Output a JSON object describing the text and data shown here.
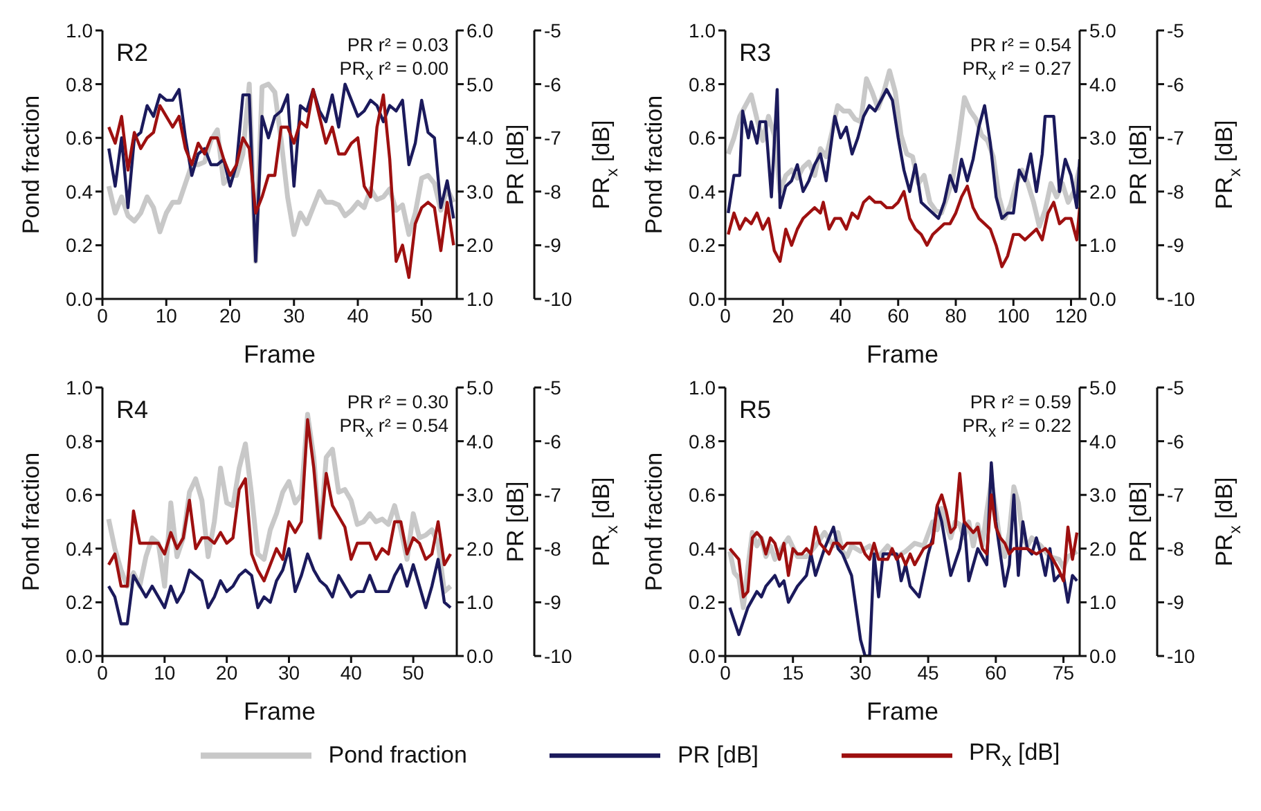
{
  "chart_data": [
    {
      "type": "line",
      "title": "R2",
      "xlabel": "Frame",
      "ylabel": "Pond fraction",
      "y2label": "PR [dB]",
      "y3label": "PR$_{x}$ [dB]",
      "annotations": [
        "PR r² = 0.03",
        "PR$_{x}$ r² = 0.00"
      ],
      "x": [
        1,
        2,
        3,
        4,
        5,
        6,
        7,
        8,
        9,
        10,
        11,
        12,
        13,
        14,
        15,
        16,
        17,
        18,
        19,
        20,
        21,
        22,
        23,
        24,
        25,
        26,
        27,
        28,
        29,
        30,
        31,
        32,
        33,
        34,
        35,
        36,
        37,
        38,
        39,
        40,
        41,
        42,
        43,
        44,
        45,
        46,
        47,
        48,
        49,
        50,
        51,
        52,
        53,
        54,
        55
      ],
      "xlim": [
        0,
        55.5
      ],
      "xticks": [
        0,
        10,
        20,
        30,
        40,
        50
      ],
      "ylim": [
        0,
        1
      ],
      "yticks": [
        {
          "value": 0,
          "label": "0.0"
        },
        {
          "value": 0.2,
          "label": "0.2"
        },
        {
          "value": 0.4,
          "label": "0.4"
        },
        {
          "value": 0.6,
          "label": "0.6"
        },
        {
          "value": 0.8,
          "label": "0.8"
        },
        {
          "value": 1,
          "label": "1.0"
        }
      ],
      "y2lim": [
        1,
        6
      ],
      "y2ticks": [
        {
          "value": 1,
          "label": "1.0"
        },
        {
          "value": 2,
          "label": "2.0"
        },
        {
          "value": 3,
          "label": "3.0"
        },
        {
          "value": 4,
          "label": "4.0"
        },
        {
          "value": 5,
          "label": "5.0"
        },
        {
          "value": 6,
          "label": "6.0"
        }
      ],
      "y3lim": [
        -10,
        -5
      ],
      "y3ticks": [
        -10,
        -9,
        -8,
        -7,
        -6,
        -5
      ],
      "series": [
        {
          "color": "#c8c8c8",
          "values": [
            0.42,
            0.32,
            0.38,
            0.31,
            0.29,
            0.32,
            0.38,
            0.34,
            0.25,
            0.32,
            0.36,
            0.36,
            0.43,
            0.5,
            0.5,
            0.51,
            0.59,
            0.63,
            0.43,
            0.46,
            0.46,
            0.54,
            0.8,
            0.14,
            0.79,
            0.8,
            0.77,
            0.59,
            0.38,
            0.24,
            0.32,
            0.28,
            0.34,
            0.4,
            0.36,
            0.36,
            0.35,
            0.31,
            0.33,
            0.36,
            0.34,
            0.41,
            0.37,
            0.38,
            0.41,
            0.33,
            0.35,
            0.24,
            0.32,
            0.45,
            0.46,
            0.43,
            0.33,
            0.41,
            0.36
          ]
        },
        {
          "color": "#1b1a5c",
          "axis": "y2",
          "values": [
            3.8,
            3.1,
            4.0,
            2.7,
            4.0,
            4.1,
            4.6,
            4.4,
            4.8,
            4.7,
            4.7,
            4.9,
            4.0,
            3.3,
            3.7,
            3.8,
            3.5,
            3.5,
            3.6,
            3.1,
            3.5,
            4.8,
            4.8,
            1.7,
            4.4,
            4.0,
            4.4,
            4.5,
            4.8,
            3.1,
            4.6,
            4.5,
            4.9,
            4.5,
            4.3,
            4.8,
            4.2,
            5.0,
            4.7,
            4.4,
            4.5,
            4.7,
            4.6,
            4.3,
            4.6,
            4.5,
            4.7,
            3.5,
            3.9,
            4.7,
            4.1,
            4.0,
            2.7,
            3.2,
            2.5
          ]
        },
        {
          "color": "#9e1010",
          "axis": "y3",
          "values": [
            -6.8,
            -7.1,
            -6.6,
            -7.6,
            -6.9,
            -7.2,
            -7.0,
            -6.9,
            -6.4,
            -6.6,
            -6.8,
            -6.6,
            -7.2,
            -7.5,
            -7.1,
            -7.3,
            -7.0,
            -7.0,
            -7.4,
            -7.7,
            -7.5,
            -7.0,
            -7.2,
            -8.4,
            -8.1,
            -7.7,
            -7.7,
            -6.8,
            -6.8,
            -7.1,
            -6.7,
            -6.8,
            -6.1,
            -6.6,
            -7.1,
            -6.8,
            -7.3,
            -7.3,
            -7.1,
            -7.0,
            -7.9,
            -8.1,
            -6.8,
            -6.2,
            -7.4,
            -9.3,
            -9.0,
            -9.6,
            -8.6,
            -8.3,
            -8.2,
            -8.3,
            -9.1,
            -8.2,
            -9.0
          ]
        }
      ]
    },
    {
      "type": "line",
      "title": "R3",
      "xlabel": "Frame",
      "ylabel": "Pond fraction",
      "y2label": "PR [dB]",
      "y3label": "PR$_{x}$ [dB]",
      "annotations": [
        "PR r² = 0.54",
        "PR$_{x}$ r² = 0.27"
      ],
      "xlim": [
        0,
        123
      ],
      "xticks": [
        0,
        20,
        40,
        60,
        80,
        100,
        120
      ],
      "ylim": [
        0,
        1
      ],
      "yticks": [
        {
          "value": 0,
          "label": "0.0"
        },
        {
          "value": 0.2,
          "label": "0.2"
        },
        {
          "value": 0.4,
          "label": "0.4"
        },
        {
          "value": 0.6,
          "label": "0.6"
        },
        {
          "value": 0.8,
          "label": "0.8"
        },
        {
          "value": 1,
          "label": "1.0"
        }
      ],
      "y2lim": [
        0,
        5
      ],
      "y2ticks": [
        {
          "value": 0,
          "label": "0.0"
        },
        {
          "value": 1,
          "label": "1.0"
        },
        {
          "value": 2,
          "label": "2.0"
        },
        {
          "value": 3,
          "label": "3.0"
        },
        {
          "value": 4,
          "label": "4.0"
        },
        {
          "value": 5,
          "label": "5.0"
        }
      ],
      "y3lim": [
        -10,
        -5
      ],
      "y3ticks": [
        -10,
        -9,
        -8,
        -7,
        -6,
        -5
      ],
      "series": [
        {
          "color": "#c8c8c8",
          "x": [
            1,
            3,
            5,
            7,
            9,
            11,
            13,
            15,
            17,
            19,
            21,
            23,
            25,
            27,
            29,
            31,
            33,
            35,
            37,
            39,
            41,
            43,
            45,
            47,
            49,
            51,
            53,
            55,
            57,
            59,
            61,
            63,
            65,
            67,
            69,
            71,
            73,
            75,
            77,
            79,
            81,
            83,
            85,
            87,
            89,
            91,
            93,
            95,
            97,
            99,
            101,
            103,
            105,
            107,
            109,
            111,
            113,
            115,
            117,
            119,
            121,
            123
          ],
          "values": [
            0.54,
            0.6,
            0.68,
            0.72,
            0.76,
            0.67,
            0.59,
            0.68,
            0.61,
            0.4,
            0.46,
            0.48,
            0.45,
            0.49,
            0.51,
            0.46,
            0.56,
            0.53,
            0.62,
            0.72,
            0.7,
            0.7,
            0.67,
            0.66,
            0.82,
            0.77,
            0.71,
            0.77,
            0.85,
            0.77,
            0.61,
            0.54,
            0.53,
            0.43,
            0.46,
            0.36,
            0.33,
            0.32,
            0.38,
            0.45,
            0.59,
            0.75,
            0.7,
            0.67,
            0.61,
            0.59,
            0.53,
            0.38,
            0.3,
            0.35,
            0.43,
            0.48,
            0.43,
            0.36,
            0.27,
            0.33,
            0.43,
            0.38,
            0.43,
            0.36,
            0.4,
            0.49
          ]
        },
        {
          "color": "#1b1a5c",
          "axis": "y2",
          "x": [
            1,
            3,
            5,
            6,
            8,
            9,
            11,
            12,
            14,
            16,
            18,
            19,
            21,
            23,
            25,
            27,
            29,
            31,
            33,
            35,
            37,
            38,
            40,
            42,
            44,
            46,
            48,
            50,
            52,
            54,
            56,
            58,
            60,
            62,
            64,
            66,
            68,
            70,
            72,
            74,
            76,
            78,
            80,
            82,
            84,
            86,
            88,
            90,
            92,
            94,
            96,
            98,
            100,
            102,
            104,
            106,
            108,
            110,
            111,
            114,
            116,
            118,
            120,
            122,
            123
          ],
          "values": [
            1.6,
            2.3,
            2.3,
            3.5,
            3.0,
            3.3,
            2.9,
            3.3,
            3.3,
            1.9,
            3.9,
            1.7,
            2.1,
            2.2,
            2.5,
            2.0,
            2.2,
            2.5,
            2.7,
            2.2,
            3.0,
            3.4,
            3.0,
            3.2,
            2.7,
            3.0,
            3.4,
            3.6,
            3.5,
            3.7,
            3.9,
            3.7,
            3.0,
            2.4,
            2.0,
            2.5,
            1.8,
            1.7,
            1.6,
            1.5,
            1.8,
            2.3,
            2.0,
            2.6,
            2.2,
            2.6,
            3.2,
            3.6,
            2.9,
            1.9,
            1.5,
            1.6,
            1.6,
            2.4,
            2.2,
            2.7,
            2.0,
            2.7,
            3.4,
            3.4,
            2.0,
            2.6,
            2.3,
            1.7,
            2.6
          ]
        },
        {
          "color": "#9e1010",
          "axis": "y3",
          "x": [
            1,
            3,
            5,
            7,
            9,
            11,
            13,
            15,
            17,
            19,
            21,
            23,
            25,
            27,
            29,
            31,
            33,
            34,
            36,
            38,
            40,
            42,
            44,
            46,
            48,
            50,
            52,
            54,
            56,
            58,
            60,
            62,
            64,
            66,
            68,
            70,
            72,
            74,
            76,
            78,
            80,
            82,
            84,
            86,
            88,
            90,
            92,
            94,
            96,
            98,
            100,
            102,
            104,
            106,
            108,
            110,
            112,
            114,
            116,
            118,
            120,
            122,
            123
          ],
          "values": [
            -8.8,
            -8.4,
            -8.7,
            -8.5,
            -8.6,
            -8.4,
            -8.7,
            -8.5,
            -9.1,
            -9.3,
            -8.7,
            -9.0,
            -8.7,
            -8.5,
            -8.4,
            -8.3,
            -8.4,
            -8.2,
            -8.7,
            -8.5,
            -8.5,
            -8.7,
            -8.4,
            -8.5,
            -8.2,
            -8.1,
            -8.2,
            -8.2,
            -8.3,
            -8.3,
            -8.2,
            -8.0,
            -8.5,
            -8.7,
            -8.8,
            -9.0,
            -8.8,
            -8.7,
            -8.6,
            -8.6,
            -8.4,
            -8.1,
            -7.9,
            -8.3,
            -8.5,
            -8.6,
            -8.7,
            -9.0,
            -9.4,
            -9.2,
            -8.8,
            -8.8,
            -8.9,
            -8.8,
            -8.7,
            -8.9,
            -8.4,
            -8.2,
            -8.6,
            -8.5,
            -8.5,
            -8.9,
            -8.3
          ]
        }
      ]
    },
    {
      "type": "line",
      "title": "R4",
      "xlabel": "Frame",
      "ylabel": "Pond fraction",
      "y2label": "PR [dB]",
      "y3label": "PR$_{x}$ [dB]",
      "annotations": [
        "PR r² = 0.30",
        "PR$_{x}$ r² = 0.54"
      ],
      "x": [
        1,
        2,
        3,
        4,
        5,
        6,
        7,
        8,
        9,
        10,
        11,
        12,
        13,
        14,
        15,
        16,
        17,
        18,
        19,
        20,
        21,
        22,
        23,
        24,
        25,
        26,
        27,
        28,
        29,
        30,
        31,
        32,
        33,
        34,
        35,
        36,
        37,
        38,
        39,
        40,
        41,
        42,
        43,
        44,
        45,
        46,
        47,
        48,
        49,
        50,
        51,
        52,
        53,
        54,
        55,
        56
      ],
      "xlim": [
        0,
        57
      ],
      "xticks": [
        0,
        10,
        20,
        30,
        40,
        50
      ],
      "ylim": [
        0,
        1
      ],
      "yticks": [
        {
          "value": 0,
          "label": "0.0"
        },
        {
          "value": 0.2,
          "label": "0.2"
        },
        {
          "value": 0.4,
          "label": "0.4"
        },
        {
          "value": 0.6,
          "label": "0.6"
        },
        {
          "value": 0.8,
          "label": "0.8"
        },
        {
          "value": 1,
          "label": "1.0"
        }
      ],
      "y2lim": [
        0,
        5
      ],
      "y2ticks": [
        {
          "value": 0,
          "label": "0.0"
        },
        {
          "value": 1,
          "label": "1.0"
        },
        {
          "value": 2,
          "label": "2.0"
        },
        {
          "value": 3,
          "label": "3.0"
        },
        {
          "value": 4,
          "label": "4.0"
        },
        {
          "value": 5,
          "label": "5.0"
        }
      ],
      "y3lim": [
        -10,
        -5
      ],
      "y3ticks": [
        -10,
        -9,
        -8,
        -7,
        -6,
        -5
      ],
      "series": [
        {
          "color": "#c8c8c8",
          "values": [
            0.51,
            0.4,
            0.32,
            0.26,
            0.31,
            0.26,
            0.37,
            0.44,
            0.42,
            0.26,
            0.57,
            0.37,
            0.44,
            0.61,
            0.66,
            0.58,
            0.37,
            0.5,
            0.7,
            0.57,
            0.56,
            0.7,
            0.79,
            0.6,
            0.38,
            0.36,
            0.47,
            0.53,
            0.61,
            0.65,
            0.57,
            0.6,
            0.9,
            0.74,
            0.44,
            0.74,
            0.77,
            0.61,
            0.62,
            0.58,
            0.49,
            0.5,
            0.53,
            0.5,
            0.51,
            0.49,
            0.56,
            0.47,
            0.36,
            0.53,
            0.44,
            0.45,
            0.47,
            0.42,
            0.24,
            0.26
          ]
        },
        {
          "color": "#1b1a5c",
          "axis": "y2",
          "values": [
            1.3,
            1.1,
            0.6,
            0.6,
            1.5,
            1.3,
            1.1,
            1.3,
            1.1,
            0.9,
            1.3,
            1.0,
            1.2,
            1.6,
            1.5,
            1.4,
            0.9,
            1.1,
            1.4,
            1.2,
            1.3,
            1.5,
            1.6,
            1.5,
            0.9,
            1.1,
            1.0,
            1.4,
            1.6,
            2.0,
            1.2,
            1.5,
            1.9,
            1.6,
            1.4,
            1.3,
            1.1,
            1.5,
            1.3,
            1.1,
            1.2,
            1.2,
            1.5,
            1.2,
            1.2,
            1.2,
            1.5,
            1.7,
            1.3,
            1.7,
            1.3,
            0.9,
            1.3,
            1.8,
            1.0,
            0.9
          ]
        },
        {
          "color": "#9e1010",
          "axis": "y3",
          "values": [
            -8.3,
            -8.1,
            -8.7,
            -8.7,
            -7.3,
            -7.9,
            -7.9,
            -7.9,
            -7.9,
            -8.1,
            -7.7,
            -8.0,
            -7.8,
            -7.1,
            -8.0,
            -7.8,
            -7.8,
            -7.9,
            -7.7,
            -7.9,
            -7.8,
            -6.9,
            -6.7,
            -8.1,
            -8.4,
            -8.6,
            -8.3,
            -8.0,
            -8.2,
            -7.5,
            -7.7,
            -7.5,
            -5.6,
            -6.5,
            -7.8,
            -6.6,
            -7.2,
            -7.4,
            -7.6,
            -8.2,
            -7.9,
            -7.9,
            -7.9,
            -8.2,
            -8.0,
            -8.1,
            -7.5,
            -7.5,
            -8.1,
            -7.8,
            -7.9,
            -8.2,
            -8.1,
            -7.5,
            -8.3,
            -8.1
          ]
        }
      ]
    },
    {
      "type": "line",
      "title": "R5",
      "xlabel": "Frame",
      "ylabel": "Pond fraction",
      "y2label": "PR [dB]",
      "y3label": "PR$_{x}$ [dB]",
      "legend": "bottom",
      "annotations": [
        "PR r² = 0.59",
        "PR$_{x}$ r² = 0.22"
      ],
      "xlim": [
        0,
        78.6
      ],
      "xticks": [
        0,
        15,
        30,
        45,
        60,
        75
      ],
      "ylim": [
        0,
        1
      ],
      "yticks": [
        {
          "value": 0,
          "label": "0.0"
        },
        {
          "value": 0.2,
          "label": "0.2"
        },
        {
          "value": 0.4,
          "label": "0.4"
        },
        {
          "value": 0.6,
          "label": "0.6"
        },
        {
          "value": 0.8,
          "label": "0.8"
        },
        {
          "value": 1,
          "label": "1.0"
        }
      ],
      "y2lim": [
        0,
        5
      ],
      "y2ticks": [
        {
          "value": 0,
          "label": "0.0"
        },
        {
          "value": 1,
          "label": "1.0"
        },
        {
          "value": 2,
          "label": "2.0"
        },
        {
          "value": 3,
          "label": "3.0"
        },
        {
          "value": 4,
          "label": "4.0"
        },
        {
          "value": 5,
          "label": "5.0"
        }
      ],
      "y3lim": [
        -10,
        -5
      ],
      "y3ticks": [
        -10,
        -9,
        -8,
        -7,
        -6,
        -5
      ],
      "series": [
        {
          "name": "Pond fraction",
          "color": "#c8c8c8",
          "x": [
            1,
            2,
            3,
            4,
            5,
            6,
            7,
            8,
            9,
            10,
            11,
            12,
            14,
            16,
            18,
            20,
            22,
            24,
            25,
            26,
            27,
            28,
            30,
            32,
            34,
            36,
            38,
            40,
            42,
            44,
            46,
            47,
            48,
            49,
            50,
            51,
            52,
            53,
            54,
            55,
            56,
            57,
            58,
            59,
            60,
            61,
            62,
            63,
            64,
            65,
            66,
            67,
            68,
            70,
            72,
            74,
            75,
            76,
            78
          ],
          "values": [
            0.39,
            0.31,
            0.29,
            0.18,
            0.33,
            0.46,
            0.41,
            0.44,
            0.37,
            0.41,
            0.36,
            0.39,
            0.44,
            0.37,
            0.37,
            0.41,
            0.46,
            0.41,
            0.46,
            0.39,
            0.37,
            0.41,
            0.39,
            0.41,
            0.37,
            0.41,
            0.37,
            0.39,
            0.42,
            0.41,
            0.5,
            0.47,
            0.55,
            0.49,
            0.44,
            0.5,
            0.49,
            0.44,
            0.5,
            0.41,
            0.49,
            0.41,
            0.54,
            0.65,
            0.54,
            0.42,
            0.37,
            0.46,
            0.63,
            0.57,
            0.44,
            0.41,
            0.44,
            0.41,
            0.37,
            0.36,
            0.33,
            0.37,
            0.39
          ]
        },
        {
          "name": "PR [dB]",
          "color": "#1b1a5c",
          "axis": "y2",
          "x": [
            1,
            3,
            5,
            7,
            8,
            9,
            11,
            12,
            13,
            14,
            16,
            18,
            19,
            20,
            22,
            24,
            25,
            26,
            28,
            30,
            31,
            32,
            33,
            34,
            35,
            37,
            38,
            39,
            40,
            41,
            43,
            45,
            46,
            47,
            48,
            50,
            52,
            53,
            54,
            56,
            58,
            59,
            60,
            61,
            62,
            63,
            64,
            65,
            66,
            67,
            68,
            69,
            70,
            71,
            72,
            73,
            74,
            75,
            76,
            77,
            78
          ],
          "values": [
            0.9,
            0.4,
            0.9,
            1.2,
            1.1,
            1.3,
            1.5,
            1.3,
            1.4,
            1.0,
            1.3,
            1.5,
            1.9,
            1.5,
            2.0,
            2.4,
            2.0,
            1.9,
            1.5,
            0.3,
            0.0,
            0.0,
            1.9,
            1.1,
            1.9,
            1.9,
            1.9,
            1.4,
            1.7,
            1.3,
            1.1,
            1.9,
            2.2,
            2.8,
            2.5,
            1.5,
            2.0,
            2.5,
            1.4,
            2.0,
            1.7,
            3.6,
            2.5,
            1.9,
            1.3,
            1.7,
            3.0,
            1.5,
            2.5,
            2.0,
            1.9,
            2.2,
            1.9,
            1.5,
            2.0,
            1.4,
            1.5,
            1.5,
            1.0,
            1.5,
            1.4
          ]
        },
        {
          "name": "PR$_{x}$ [dB]",
          "color": "#9e1010",
          "axis": "y3",
          "x": [
            1,
            2,
            3,
            4,
            5,
            6,
            7,
            8,
            9,
            10,
            11,
            12,
            13,
            14,
            15,
            16,
            17,
            18,
            19,
            20,
            21,
            22,
            23,
            24,
            25,
            26,
            27,
            28,
            30,
            31,
            32,
            33,
            34,
            36,
            37,
            38,
            39,
            40,
            41,
            42,
            44,
            46,
            47,
            48,
            49,
            50,
            51,
            52,
            53,
            54,
            55,
            56,
            57,
            58,
            59,
            60,
            61,
            62,
            63,
            64,
            65,
            67,
            69,
            71,
            72,
            74,
            75,
            76,
            77,
            78
          ],
          "values": [
            -8.0,
            -8.1,
            -8.2,
            -8.9,
            -8.8,
            -7.8,
            -7.7,
            -7.8,
            -8.1,
            -7.8,
            -7.9,
            -8.2,
            -7.9,
            -8.5,
            -8.0,
            -8.1,
            -8.1,
            -8.0,
            -8.1,
            -7.6,
            -7.9,
            -8.0,
            -8.1,
            -7.9,
            -7.9,
            -8.0,
            -7.9,
            -7.9,
            -7.9,
            -8.1,
            -8.2,
            -7.9,
            -8.2,
            -8.2,
            -8.0,
            -8.2,
            -8.1,
            -8.3,
            -8.1,
            -8.3,
            -8.0,
            -7.9,
            -7.2,
            -7.0,
            -7.3,
            -7.7,
            -7.6,
            -6.6,
            -7.5,
            -7.6,
            -7.7,
            -7.6,
            -8.0,
            -8.1,
            -7.0,
            -7.6,
            -7.8,
            -7.9,
            -8.1,
            -8.0,
            -8.0,
            -8.0,
            -8.1,
            -8.0,
            -8.1,
            -8.4,
            -8.6,
            -7.6,
            -8.2,
            -7.7
          ]
        }
      ]
    }
  ]
}
